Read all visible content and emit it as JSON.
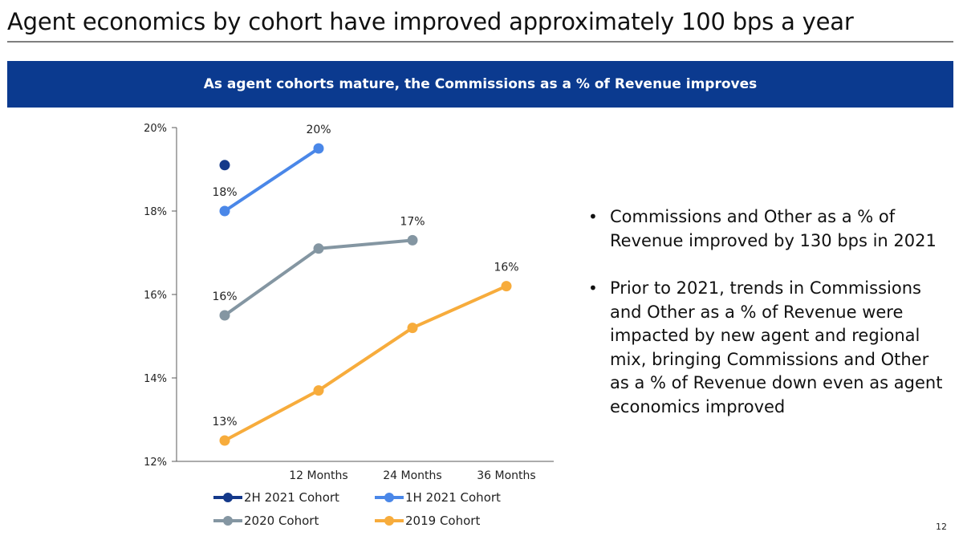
{
  "slide": {
    "title": "Agent economics by cohort have improved approximately 100 bps a year",
    "banner": "As agent cohorts mature, the Commissions as a % of Revenue improves",
    "page_number": "12",
    "bullets": [
      "Commissions and Other as a % of Revenue improved by 130 bps in 2021",
      "Prior to 2021, trends in Commissions and Other as a % of Revenue were impacted by new agent and regional mix, bringing Commissions and Other as a % of Revenue down even as agent economics improved"
    ]
  },
  "colors": {
    "banner": "#0b3a8f",
    "2H 2021 Cohort": "#14398a",
    "1H 2021 Cohort": "#4a87e8",
    "2020 Cohort": "#8496a2",
    "2019 Cohort": "#f7ac3c"
  },
  "chart_data": {
    "type": "line",
    "title": "",
    "xlabel": "",
    "ylabel": "",
    "categories": [
      "",
      "12 Months",
      "24 Months",
      "36 Months"
    ],
    "ylim": [
      12,
      20
    ],
    "yticks": [
      "12%",
      "14%",
      "16%",
      "18%",
      "20%"
    ],
    "ytick_values": [
      12,
      14,
      16,
      18,
      20
    ],
    "legend": "bottom",
    "series": [
      {
        "name": "2H 2021 Cohort",
        "values": [
          19.1,
          null,
          null,
          null
        ],
        "labels": [
          "",
          "",
          "",
          ""
        ]
      },
      {
        "name": "1H 2021 Cohort",
        "values": [
          18.0,
          19.5,
          null,
          null
        ],
        "labels": [
          "18%",
          "20%",
          "",
          ""
        ]
      },
      {
        "name": "2020 Cohort",
        "values": [
          15.5,
          17.1,
          17.3,
          null
        ],
        "labels": [
          "16%",
          "",
          "17%",
          ""
        ]
      },
      {
        "name": "2019 Cohort",
        "values": [
          12.5,
          13.7,
          15.2,
          16.2
        ],
        "labels": [
          "13%",
          "",
          "",
          "16%"
        ]
      }
    ]
  }
}
